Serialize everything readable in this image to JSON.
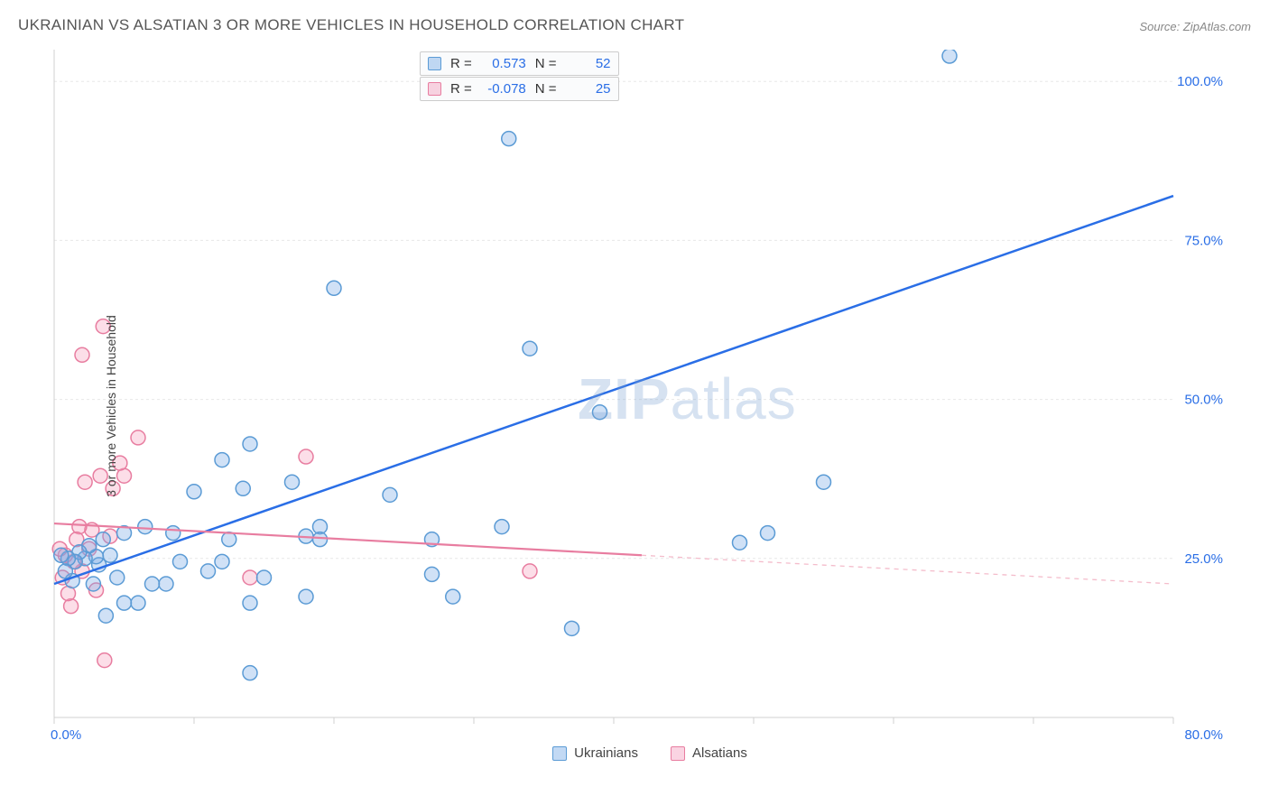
{
  "title": "UKRAINIAN VS ALSATIAN 3 OR MORE VEHICLES IN HOUSEHOLD CORRELATION CHART",
  "source": "Source: ZipAtlas.com",
  "ylabel": "3 or more Vehicles in Household",
  "watermark_zip": "ZIP",
  "watermark_atlas": "atlas",
  "chart": {
    "type": "scatter",
    "xlim": [
      0,
      80
    ],
    "ylim": [
      0,
      105
    ],
    "x_ticks": [
      0,
      10,
      20,
      30,
      40,
      50,
      60,
      70,
      80
    ],
    "x_tick_labels": {
      "0": "0.0%",
      "80": "80.0%"
    },
    "y_ticks": [
      25,
      50,
      75,
      100
    ],
    "y_tick_labels": {
      "25": "25.0%",
      "50": "50.0%",
      "75": "75.0%",
      "100": "100.0%"
    },
    "background_color": "#ffffff",
    "grid_color": "#e8e8e8",
    "grid_dash": "3,3",
    "axis_color": "#d0d0d0",
    "tick_label_color": "#2a6ee6",
    "marker_radius": 8,
    "marker_stroke_width": 1.5,
    "series": [
      {
        "name": "Ukrainians",
        "fill": "rgba(120,170,230,0.35)",
        "stroke": "#5b9bd5",
        "points": [
          [
            64,
            104
          ],
          [
            32.5,
            91
          ],
          [
            55,
            37
          ],
          [
            51,
            29
          ],
          [
            49,
            27.5
          ],
          [
            39,
            48
          ],
          [
            37,
            14
          ],
          [
            34,
            58
          ],
          [
            32,
            30
          ],
          [
            28.5,
            19
          ],
          [
            27,
            22.5
          ],
          [
            27,
            28
          ],
          [
            24,
            35
          ],
          [
            20,
            67.5
          ],
          [
            19,
            30
          ],
          [
            19,
            28
          ],
          [
            18,
            28.5
          ],
          [
            18,
            19
          ],
          [
            17,
            37
          ],
          [
            15,
            22
          ],
          [
            14,
            43
          ],
          [
            14,
            18
          ],
          [
            14,
            7
          ],
          [
            13.5,
            36
          ],
          [
            12.5,
            28
          ],
          [
            12,
            40.5
          ],
          [
            12,
            24.5
          ],
          [
            11,
            23
          ],
          [
            10,
            35.5
          ],
          [
            9,
            24.5
          ],
          [
            8.5,
            29
          ],
          [
            8,
            21
          ],
          [
            7,
            21
          ],
          [
            6.5,
            30
          ],
          [
            6,
            18
          ],
          [
            5,
            29
          ],
          [
            5,
            18
          ],
          [
            4.5,
            22
          ],
          [
            4,
            25.5
          ],
          [
            3.7,
            16
          ],
          [
            3.5,
            28
          ],
          [
            3.2,
            24
          ],
          [
            3,
            25.3
          ],
          [
            2.8,
            21
          ],
          [
            2.5,
            27
          ],
          [
            2.2,
            25
          ],
          [
            1.8,
            26
          ],
          [
            1.5,
            24.5
          ],
          [
            1.3,
            21.5
          ],
          [
            1,
            25
          ],
          [
            0.8,
            23
          ],
          [
            0.5,
            25.5
          ]
        ],
        "trend": {
          "x1": 0,
          "y1": 21,
          "x2": 80,
          "y2": 82,
          "color": "#2a6ee6",
          "width": 2.5,
          "dash": null
        }
      },
      {
        "name": "Alsatians",
        "fill": "rgba(245,160,190,0.35)",
        "stroke": "#e87da0",
        "points": [
          [
            3.5,
            61.5
          ],
          [
            2,
            57
          ],
          [
            18,
            41
          ],
          [
            14,
            22
          ],
          [
            6,
            44
          ],
          [
            5,
            38
          ],
          [
            4.7,
            40
          ],
          [
            4.2,
            36
          ],
          [
            4,
            28.5
          ],
          [
            3.6,
            9
          ],
          [
            3.3,
            38
          ],
          [
            3,
            20
          ],
          [
            2.7,
            29.5
          ],
          [
            2.5,
            26.5
          ],
          [
            2.2,
            37
          ],
          [
            2,
            23
          ],
          [
            1.8,
            30
          ],
          [
            1.6,
            28
          ],
          [
            1.4,
            24.5
          ],
          [
            1.2,
            17.5
          ],
          [
            1,
            19.5
          ],
          [
            0.8,
            25.5
          ],
          [
            0.6,
            22
          ],
          [
            0.4,
            26.5
          ],
          [
            34,
            23
          ]
        ],
        "trend_solid": {
          "x1": 0,
          "y1": 30.5,
          "x2": 42,
          "y2": 25.5,
          "color": "#e87da0",
          "width": 2.2
        },
        "trend_dash": {
          "x1": 42,
          "y1": 25.5,
          "x2": 80,
          "y2": 21,
          "color": "#f4bccb",
          "width": 1.3,
          "dash": "5,5"
        }
      }
    ],
    "stats": [
      {
        "series": "Ukrainians",
        "R": "0.573",
        "N": "52"
      },
      {
        "series": "Alsatians",
        "R": "-0.078",
        "N": "25"
      }
    ]
  },
  "legend": {
    "items": [
      {
        "label": "Ukrainians",
        "fill": "rgba(120,170,230,0.45)",
        "stroke": "#5b9bd5"
      },
      {
        "label": "Alsatians",
        "fill": "rgba(245,160,190,0.45)",
        "stroke": "#e87da0"
      }
    ]
  },
  "rbox_labels": {
    "r": "R =",
    "n": "N ="
  }
}
